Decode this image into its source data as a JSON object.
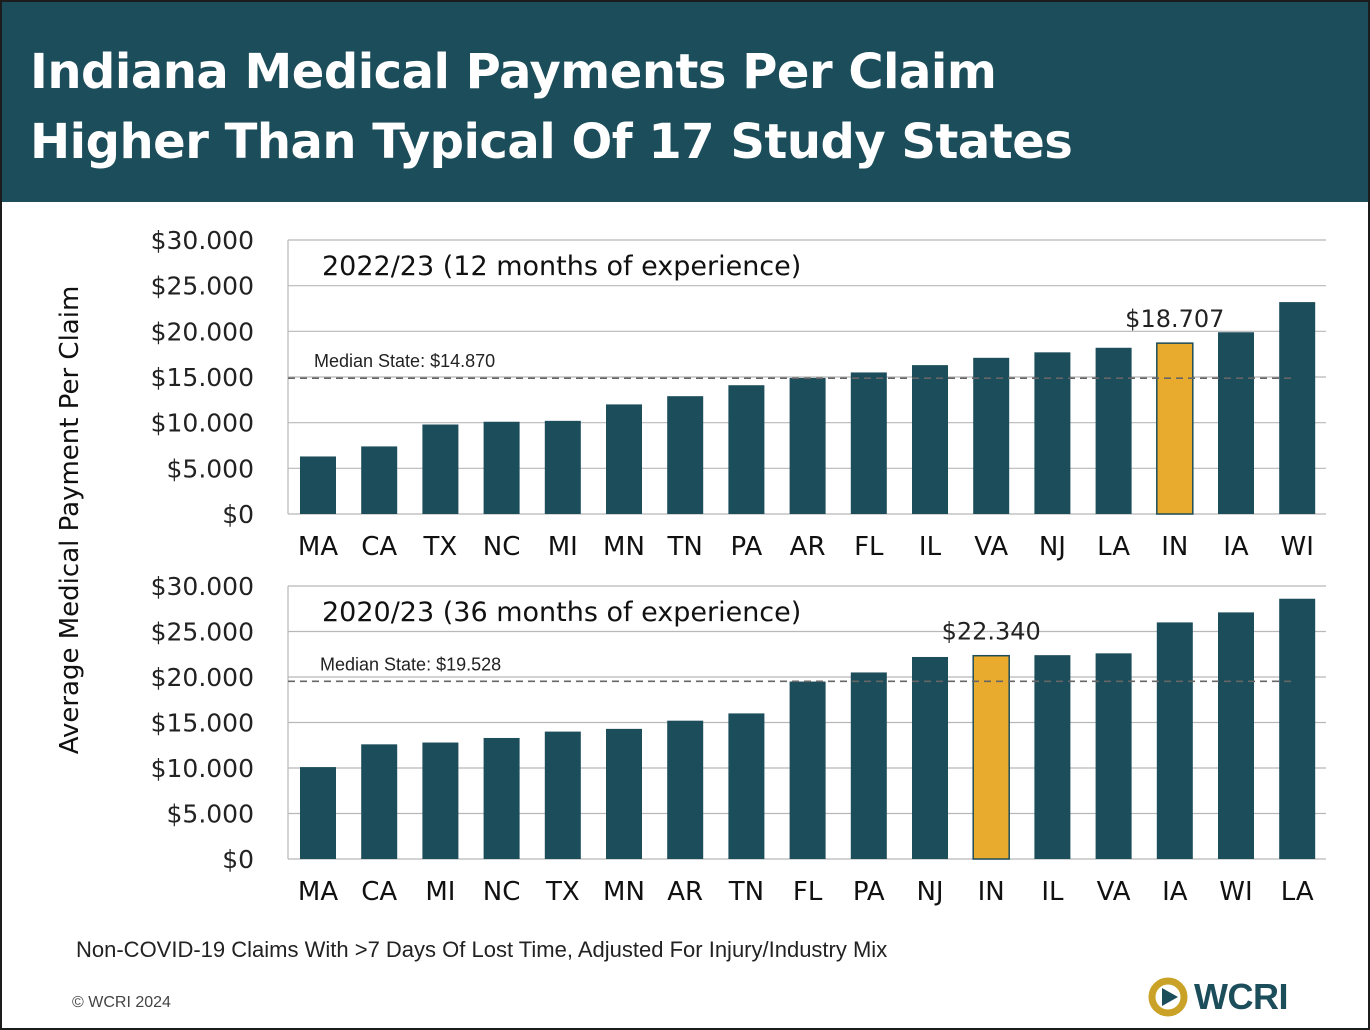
{
  "header": {
    "title_line1": "Indiana Medical Payments Per Claim",
    "title_line2": "Higher Than Typical Of 17 Study States",
    "background_color": "#1c4d5b"
  },
  "y_axis_label": "Average Medical Payment Per Claim",
  "colors": {
    "bar": "#1c4d5b",
    "highlight": "#e9ab2e",
    "grid": "#b8b8b8",
    "median_line": "#666666"
  },
  "chart_data": [
    {
      "type": "bar",
      "title": "2022/23 (12 months of experience)",
      "categories": [
        "MA",
        "CA",
        "TX",
        "NC",
        "MI",
        "MN",
        "TN",
        "PA",
        "AR",
        "FL",
        "IL",
        "VA",
        "NJ",
        "LA",
        "IN",
        "IA",
        "WI"
      ],
      "values": [
        6300,
        7400,
        9800,
        10100,
        10200,
        12000,
        12900,
        14100,
        14900,
        15500,
        16300,
        17100,
        17700,
        18200,
        18707,
        19900,
        23200
      ],
      "highlight_category": "IN",
      "highlight_label": "$18.707",
      "median_value": 14870,
      "median_label": "Median State: $14.870",
      "y_ticks": [
        0,
        5000,
        10000,
        15000,
        20000,
        25000,
        30000
      ],
      "y_tick_labels": [
        "$0",
        "$5.000",
        "$10.000",
        "$15.000",
        "$20.000",
        "$25.000",
        "$30.000"
      ],
      "ylim": [
        0,
        30000
      ],
      "ylabel": "Average Medical Payment Per Claim"
    },
    {
      "type": "bar",
      "title": "2020/23 (36 months of experience)",
      "categories": [
        "MA",
        "CA",
        "MI",
        "NC",
        "TX",
        "MN",
        "AR",
        "TN",
        "FL",
        "PA",
        "NJ",
        "IN",
        "IL",
        "VA",
        "IA",
        "WI",
        "LA"
      ],
      "values": [
        10100,
        12600,
        12800,
        13300,
        14000,
        14300,
        15200,
        16000,
        19500,
        20500,
        22200,
        22340,
        22400,
        22600,
        26000,
        27100,
        28600
      ],
      "highlight_category": "IN",
      "highlight_label": "$22.340",
      "median_value": 19528,
      "median_label": "Median State: $19.528",
      "y_ticks": [
        0,
        5000,
        10000,
        15000,
        20000,
        25000,
        30000
      ],
      "y_tick_labels": [
        "$0",
        "$5.000",
        "$10.000",
        "$15.000",
        "$20.000",
        "$25.000",
        "$30.000"
      ],
      "ylim": [
        0,
        30000
      ],
      "ylabel": "Average Medical Payment Per Claim"
    }
  ],
  "footnote": "Non-COVID-19 Claims With >7 Days Of Lost Time, Adjusted For Injury/Industry Mix",
  "copyright": "© WCRI 2024",
  "logo": {
    "text": "WCRI",
    "icon": "wcri-swirl-logo-icon",
    "ring_color": "#c9a227"
  }
}
